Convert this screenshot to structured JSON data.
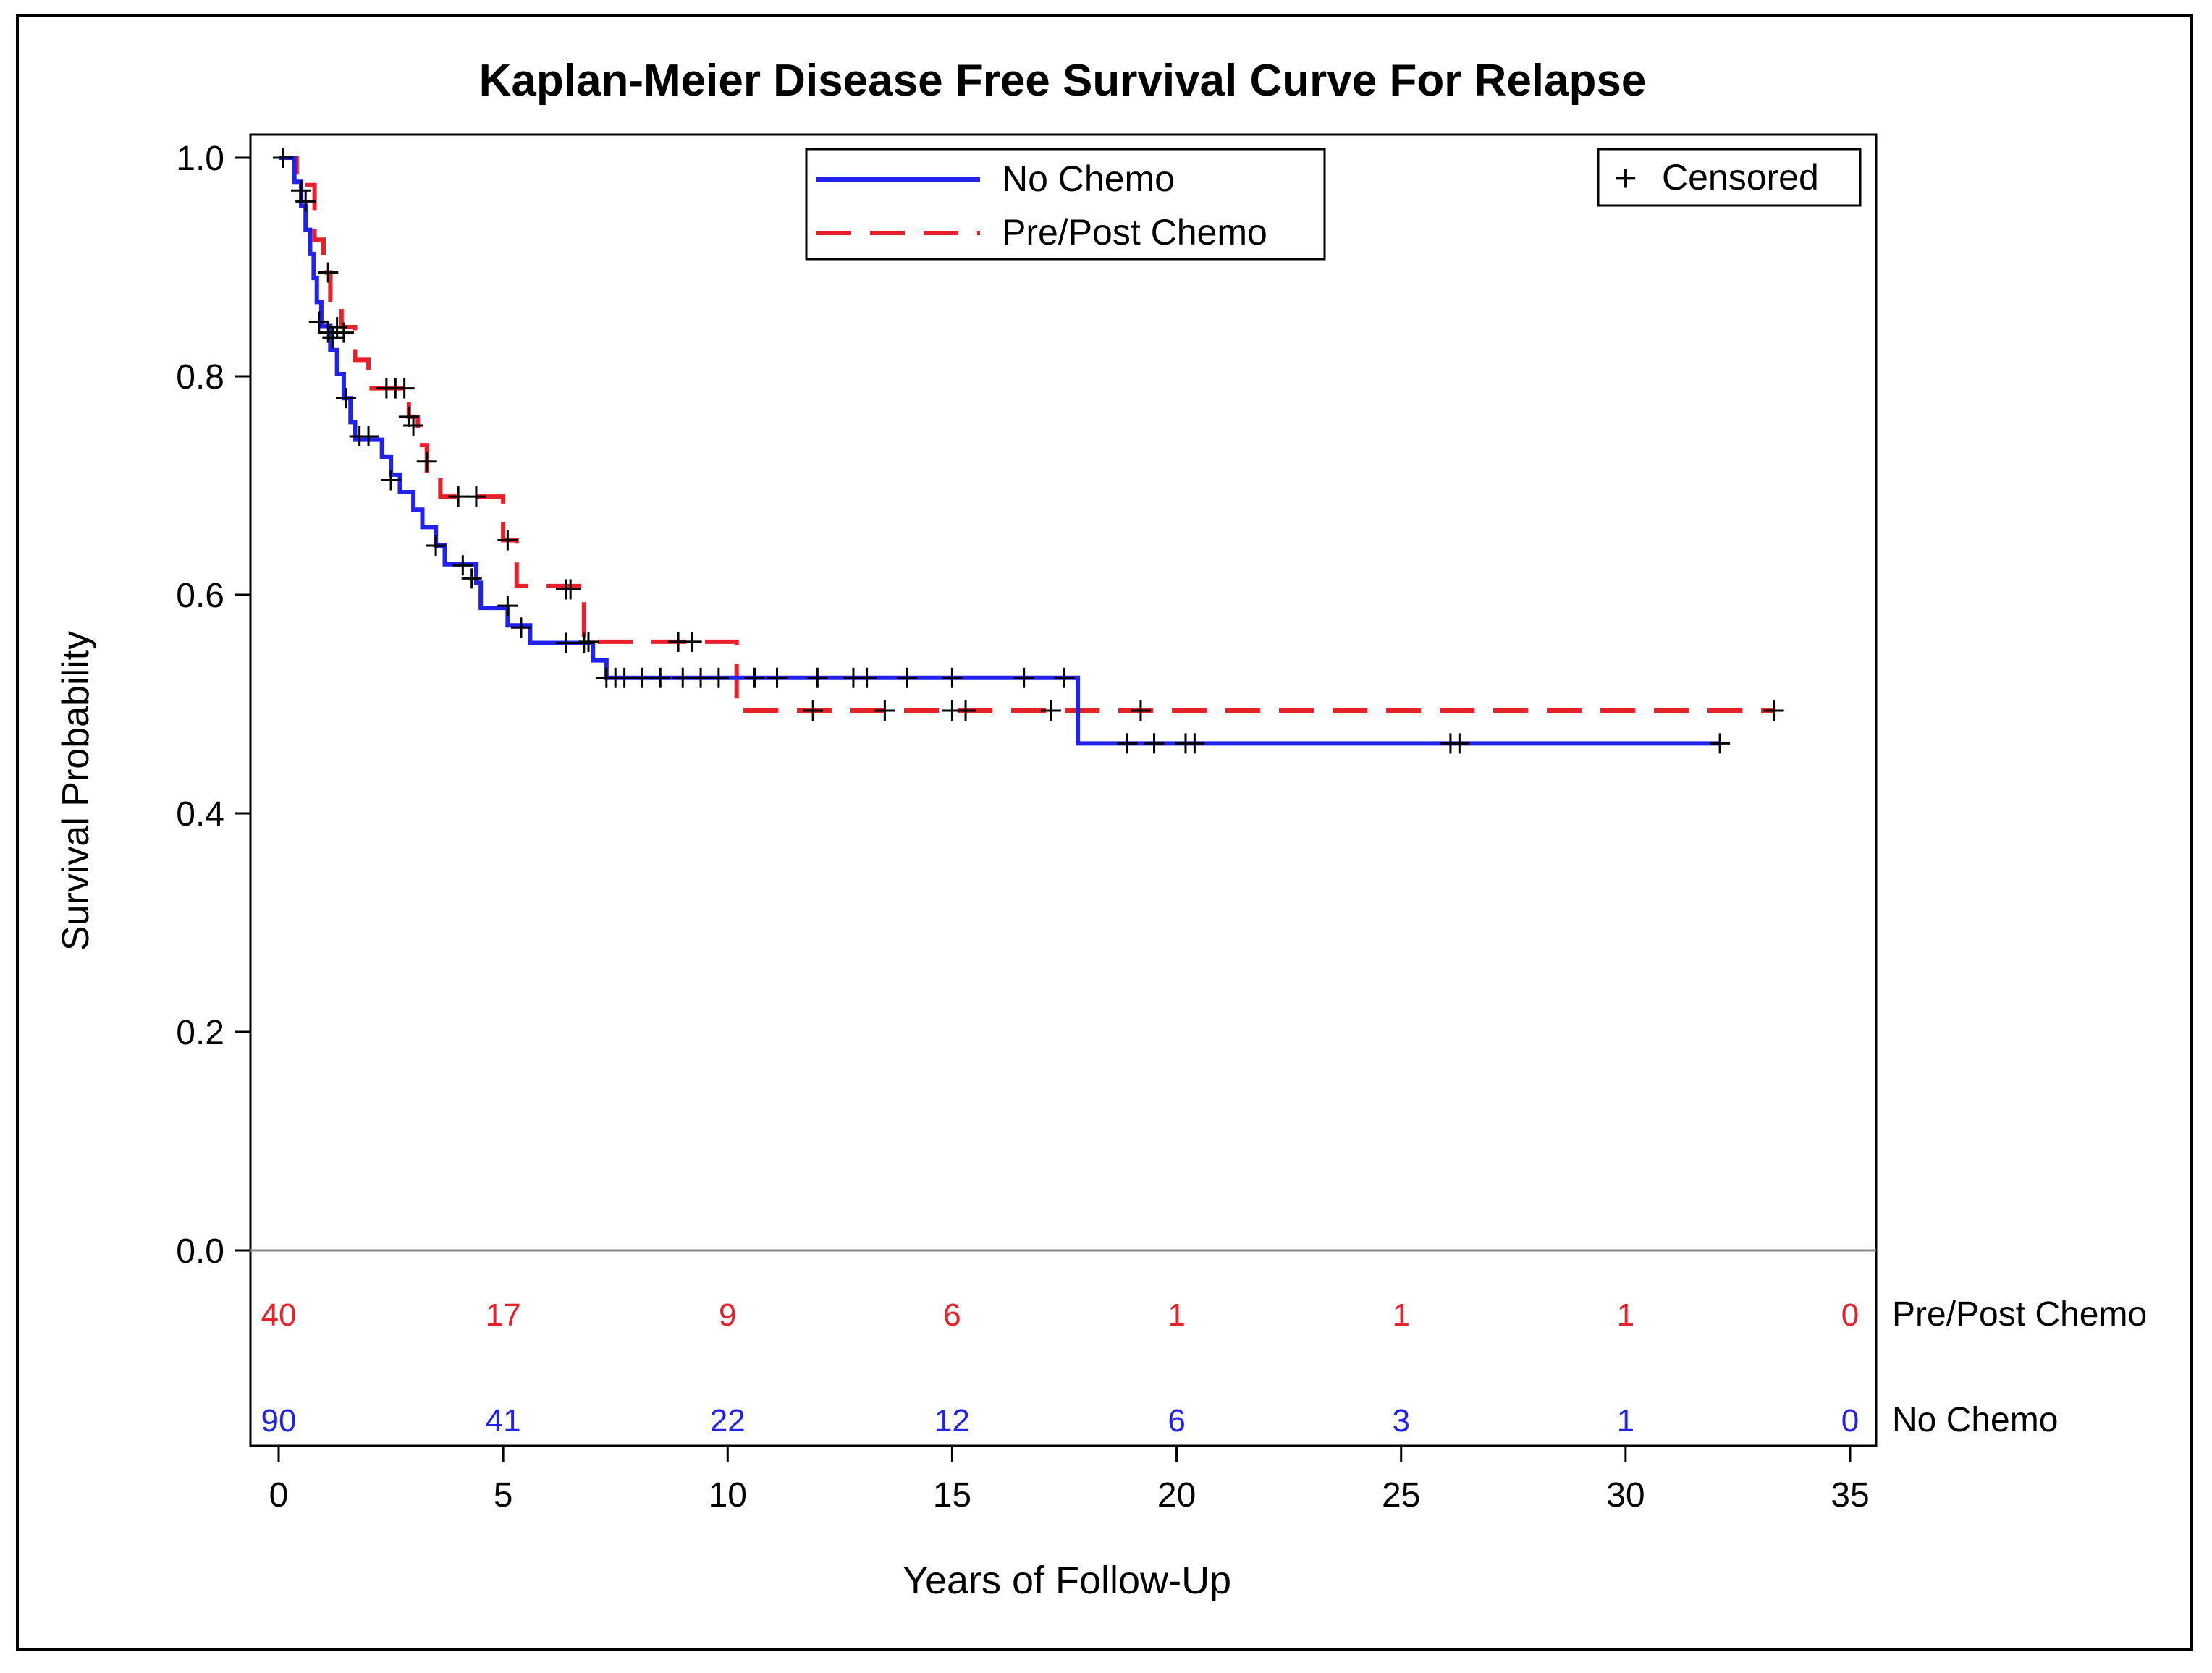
{
  "chart_data": {
    "type": "line",
    "title": "Kaplan-Meier Disease Free Survival Curve For Relapse",
    "xlabel": "Years of Follow-Up",
    "ylabel": "Survival Probability",
    "xlim": [
      -1,
      36
    ],
    "ylim": [
      0,
      1.0
    ],
    "xticks": [
      0,
      5,
      10,
      15,
      20,
      25,
      30,
      35
    ],
    "yticks": [
      0.0,
      0.2,
      0.4,
      0.6,
      0.8,
      1.0
    ],
    "xtick_labels": [
      "0",
      "5",
      "10",
      "15",
      "20",
      "25",
      "30",
      "35"
    ],
    "ytick_labels": [
      "0.0",
      "0.2",
      "0.4",
      "0.6",
      "0.8",
      "1.0"
    ],
    "legend": {
      "position": "top-center",
      "entries": [
        {
          "name": "No Chemo",
          "style": "solid",
          "color": "#2222ee"
        },
        {
          "name": "Pre/Post Chemo",
          "style": "dashed",
          "color": "#e8202a"
        }
      ]
    },
    "censor_legend": {
      "position": "top-right",
      "symbol": "+",
      "label": "Censored"
    },
    "series": [
      {
        "name": "No Chemo",
        "color": "#2222ee",
        "style": "solid",
        "steps": [
          [
            0,
            1.0
          ],
          [
            0.35,
            0.978
          ],
          [
            0.5,
            0.956
          ],
          [
            0.6,
            0.934
          ],
          [
            0.7,
            0.912
          ],
          [
            0.78,
            0.89
          ],
          [
            0.85,
            0.868
          ],
          [
            0.95,
            0.846
          ],
          [
            1.15,
            0.824
          ],
          [
            1.3,
            0.802
          ],
          [
            1.45,
            0.78
          ],
          [
            1.6,
            0.758
          ],
          [
            1.7,
            0.742
          ],
          [
            2.3,
            0.726
          ],
          [
            2.5,
            0.71
          ],
          [
            2.7,
            0.694
          ],
          [
            3.0,
            0.678
          ],
          [
            3.2,
            0.662
          ],
          [
            3.5,
            0.645
          ],
          [
            3.7,
            0.628
          ],
          [
            4.4,
            0.611
          ],
          [
            4.5,
            0.588
          ],
          [
            5.1,
            0.572
          ],
          [
            5.6,
            0.556
          ],
          [
            7.0,
            0.54
          ],
          [
            7.3,
            0.524
          ],
          [
            17.8,
            0.464
          ],
          [
            32.1,
            0.464
          ]
        ],
        "censored": [
          [
            0.1,
            1.0
          ],
          [
            0.6,
            0.96
          ],
          [
            0.9,
            0.85
          ],
          [
            1.1,
            0.84
          ],
          [
            1.2,
            0.835
          ],
          [
            1.5,
            0.78
          ],
          [
            1.8,
            0.745
          ],
          [
            2.0,
            0.745
          ],
          [
            2.5,
            0.705
          ],
          [
            3.5,
            0.645
          ],
          [
            4.1,
            0.627
          ],
          [
            4.3,
            0.615
          ],
          [
            5.1,
            0.59
          ],
          [
            5.4,
            0.57
          ],
          [
            6.4,
            0.556
          ],
          [
            6.8,
            0.556
          ],
          [
            7.3,
            0.524
          ],
          [
            7.5,
            0.524
          ],
          [
            7.7,
            0.524
          ],
          [
            8.1,
            0.524
          ],
          [
            8.5,
            0.524
          ],
          [
            9.0,
            0.524
          ],
          [
            9.4,
            0.524
          ],
          [
            9.8,
            0.524
          ],
          [
            10.6,
            0.524
          ],
          [
            11.1,
            0.524
          ],
          [
            12.0,
            0.524
          ],
          [
            12.8,
            0.524
          ],
          [
            13.1,
            0.524
          ],
          [
            14.0,
            0.524
          ],
          [
            15.0,
            0.524
          ],
          [
            16.6,
            0.524
          ],
          [
            17.5,
            0.524
          ],
          [
            18.9,
            0.464
          ],
          [
            19.5,
            0.464
          ],
          [
            20.2,
            0.464
          ],
          [
            20.4,
            0.464
          ],
          [
            26.1,
            0.464
          ],
          [
            26.3,
            0.464
          ],
          [
            32.1,
            0.464
          ]
        ]
      },
      {
        "name": "Pre/Post Chemo",
        "color": "#e8202a",
        "style": "dashed",
        "steps": [
          [
            0,
            1.0
          ],
          [
            0.4,
            0.975
          ],
          [
            0.8,
            0.925
          ],
          [
            1.0,
            0.895
          ],
          [
            1.15,
            0.87
          ],
          [
            1.4,
            0.845
          ],
          [
            1.7,
            0.815
          ],
          [
            2.0,
            0.789
          ],
          [
            2.9,
            0.763
          ],
          [
            3.1,
            0.737
          ],
          [
            3.3,
            0.711
          ],
          [
            3.6,
            0.69
          ],
          [
            5.0,
            0.65
          ],
          [
            5.3,
            0.608
          ],
          [
            6.8,
            0.557
          ],
          [
            10.2,
            0.494
          ],
          [
            33.3,
            0.494
          ]
        ],
        "censored": [
          [
            0.1,
            1.0
          ],
          [
            0.5,
            0.97
          ],
          [
            1.1,
            0.895
          ],
          [
            1.3,
            0.845
          ],
          [
            1.45,
            0.84
          ],
          [
            2.4,
            0.789
          ],
          [
            2.6,
            0.789
          ],
          [
            2.8,
            0.789
          ],
          [
            2.9,
            0.763
          ],
          [
            3.0,
            0.755
          ],
          [
            3.3,
            0.722
          ],
          [
            4.0,
            0.69
          ],
          [
            4.4,
            0.69
          ],
          [
            5.1,
            0.65
          ],
          [
            6.4,
            0.605
          ],
          [
            6.5,
            0.605
          ],
          [
            6.9,
            0.557
          ],
          [
            8.9,
            0.557
          ],
          [
            9.2,
            0.557
          ],
          [
            11.9,
            0.494
          ],
          [
            13.5,
            0.494
          ],
          [
            15.0,
            0.494
          ],
          [
            15.3,
            0.494
          ],
          [
            17.2,
            0.494
          ],
          [
            19.2,
            0.494
          ],
          [
            33.3,
            0.494
          ]
        ]
      }
    ],
    "at_risk": {
      "times": [
        0,
        5,
        10,
        15,
        20,
        25,
        30,
        35
      ],
      "rows": [
        {
          "name": "Pre/Post Chemo",
          "color": "#e8202a",
          "counts": [
            "40",
            "17",
            "9",
            "6",
            "1",
            "1",
            "1",
            "0"
          ]
        },
        {
          "name": "No Chemo",
          "color": "#2222ee",
          "counts": [
            "90",
            "41",
            "22",
            "12",
            "6",
            "3",
            "1",
            "0"
          ]
        }
      ]
    }
  }
}
